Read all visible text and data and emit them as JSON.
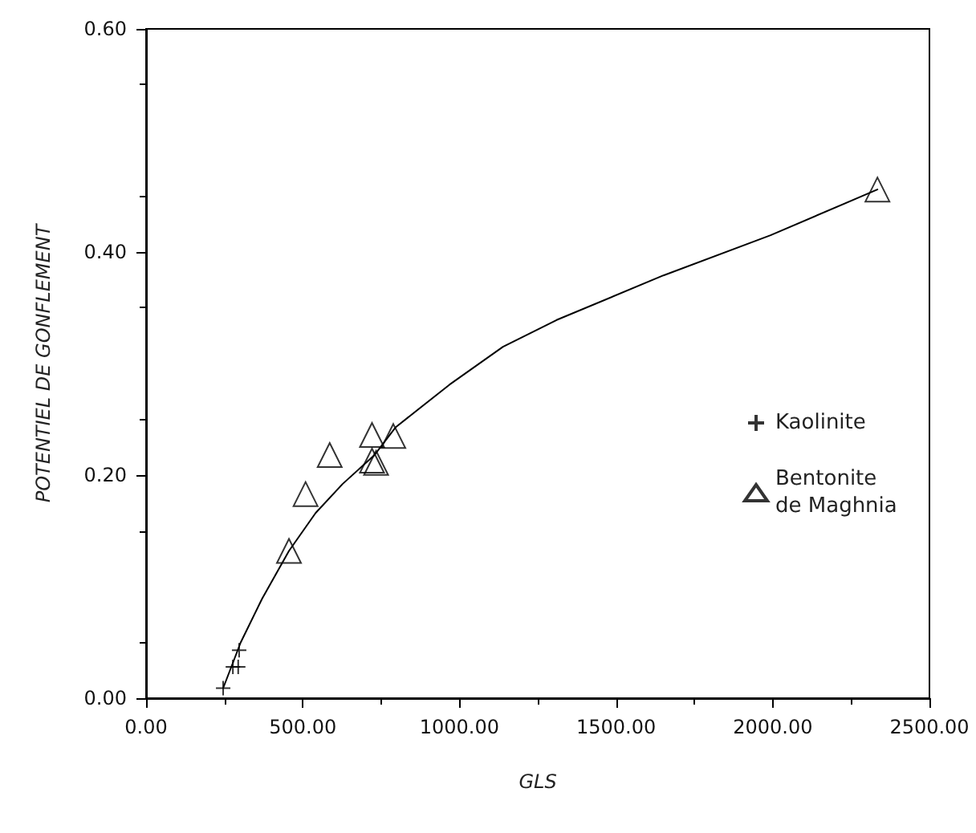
{
  "chart_data": {
    "type": "scatter",
    "xlabel": "GLS",
    "ylabel": "POTENTIEL DE GONFLEMENT",
    "xlim": [
      0,
      2500
    ],
    "xticks": [
      {
        "value": 0,
        "label": "0.00"
      },
      {
        "value": 500,
        "label": "500.00"
      },
      {
        "value": 1000,
        "label": "1000.00"
      },
      {
        "value": 1500,
        "label": "1500.00"
      },
      {
        "value": 2000,
        "label": "2000.00"
      },
      {
        "value": 2500,
        "label": "2500.00"
      }
    ],
    "ylim": [
      0,
      0.6
    ],
    "yticks": [
      {
        "value": 0,
        "label": "0.00"
      },
      {
        "value": 0.2,
        "label": "0.20"
      },
      {
        "value": 0.4,
        "label": "0.40"
      },
      {
        "value": 0.6,
        "label": "0.60"
      }
    ],
    "grid": false,
    "legend": "right",
    "series": [
      {
        "name": "Kaolinite",
        "color": "#000000",
        "marker": "cross",
        "x": [
          246,
          277,
          294,
          297
        ],
        "values": [
          0.009,
          0.028,
          0.028,
          0.043
        ]
      },
      {
        "name": "Bentonite de Maghnia",
        "color": "#000000",
        "marker": "triangle",
        "x": [
          456,
          509,
          586,
          721,
          789,
          721,
          734,
          2334
        ],
        "values": [
          0.132,
          0.183,
          0.218,
          0.236,
          0.235,
          0.213,
          0.211,
          0.456
        ]
      },
      {
        "type": "line",
        "color": "#000000",
        "marker": "none",
        "line_style": "solid",
        "x": [
          246,
          302,
          370,
          456,
          541,
          627,
          729,
          797,
          968,
          1139,
          1310,
          1651,
          1993,
          2334
        ],
        "values": [
          0.009,
          0.05,
          0.089,
          0.132,
          0.166,
          0.192,
          0.218,
          0.243,
          0.281,
          0.315,
          0.339,
          0.379,
          0.415,
          0.456
        ]
      }
    ]
  }
}
